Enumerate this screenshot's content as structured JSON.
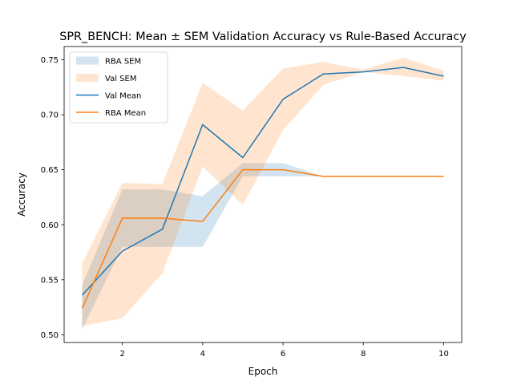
{
  "chart_data": {
    "type": "line",
    "title": "SPR_BENCH: Mean ± SEM Validation Accuracy vs Rule-Based Accuracy",
    "xlabel": "Epoch",
    "ylabel": "Accuracy",
    "xlim": [
      0.55,
      10.45
    ],
    "ylim": [
      0.493,
      0.762
    ],
    "x_ticks": [
      2,
      4,
      6,
      8,
      10
    ],
    "y_ticks": [
      0.5,
      0.55,
      0.6,
      0.65,
      0.7,
      0.75
    ],
    "grid": false,
    "legend_position": "top-left",
    "x": [
      1,
      2,
      3,
      4,
      5,
      6,
      7,
      8,
      9,
      10
    ],
    "bands": [
      {
        "name": "RBA SEM",
        "color": "#1f77b4",
        "lower": [
          0.505,
          0.58,
          0.58,
          0.58,
          0.644,
          0.644,
          0.644,
          0.644,
          0.644,
          0.644
        ],
        "upper": [
          0.545,
          0.632,
          0.632,
          0.626,
          0.656,
          0.656,
          0.644,
          0.644,
          0.644,
          0.644
        ]
      },
      {
        "name": "Val SEM",
        "color": "#ff7f0e",
        "lower": [
          0.508,
          0.515,
          0.556,
          0.653,
          0.618,
          0.686,
          0.727,
          0.739,
          0.735,
          0.731
        ],
        "upper": [
          0.565,
          0.638,
          0.637,
          0.729,
          0.704,
          0.742,
          0.748,
          0.741,
          0.752,
          0.74
        ]
      }
    ],
    "series": [
      {
        "name": "Val Mean",
        "color": "#1f77b4",
        "values": [
          0.536,
          0.576,
          0.596,
          0.691,
          0.661,
          0.714,
          0.737,
          0.739,
          0.743,
          0.735
        ]
      },
      {
        "name": "RBA Mean",
        "color": "#ff7f0e",
        "values": [
          0.524,
          0.606,
          0.606,
          0.603,
          0.65,
          0.65,
          0.644,
          0.644,
          0.644,
          0.644
        ]
      }
    ],
    "legend": [
      "RBA SEM",
      "Val SEM",
      "Val Mean",
      "RBA Mean"
    ]
  }
}
